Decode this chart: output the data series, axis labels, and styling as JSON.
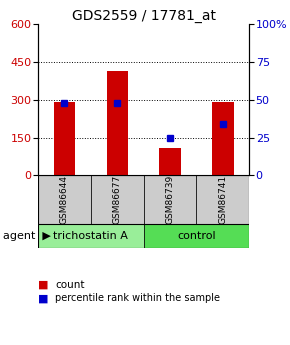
{
  "title": "GDS2559 / 17781_at",
  "categories": [
    "GSM86644",
    "GSM86677",
    "GSM86739",
    "GSM86741"
  ],
  "bar_values": [
    290,
    415,
    110,
    290
  ],
  "blue_percentiles": [
    48,
    48,
    25,
    34
  ],
  "left_ylim": [
    0,
    600
  ],
  "right_ylim": [
    0,
    100
  ],
  "left_yticks": [
    0,
    150,
    300,
    450,
    600
  ],
  "right_yticks": [
    0,
    25,
    50,
    75,
    100
  ],
  "right_yticklabels": [
    "0",
    "25",
    "50",
    "75",
    "100%"
  ],
  "gridlines": [
    150,
    300,
    450
  ],
  "bar_color": "#cc0000",
  "blue_color": "#0000cc",
  "agent_groups": [
    {
      "label": "trichostatin A",
      "indices": [
        0,
        1
      ],
      "color": "#99ee99"
    },
    {
      "label": "control",
      "indices": [
        2,
        3
      ],
      "color": "#55dd55"
    }
  ],
  "sample_box_color": "#cccccc",
  "agent_label": "agent",
  "bar_width": 0.4,
  "title_fontsize": 10,
  "axis_tick_fontsize": 8,
  "sample_fontsize": 6.5,
  "agent_fontsize": 8
}
